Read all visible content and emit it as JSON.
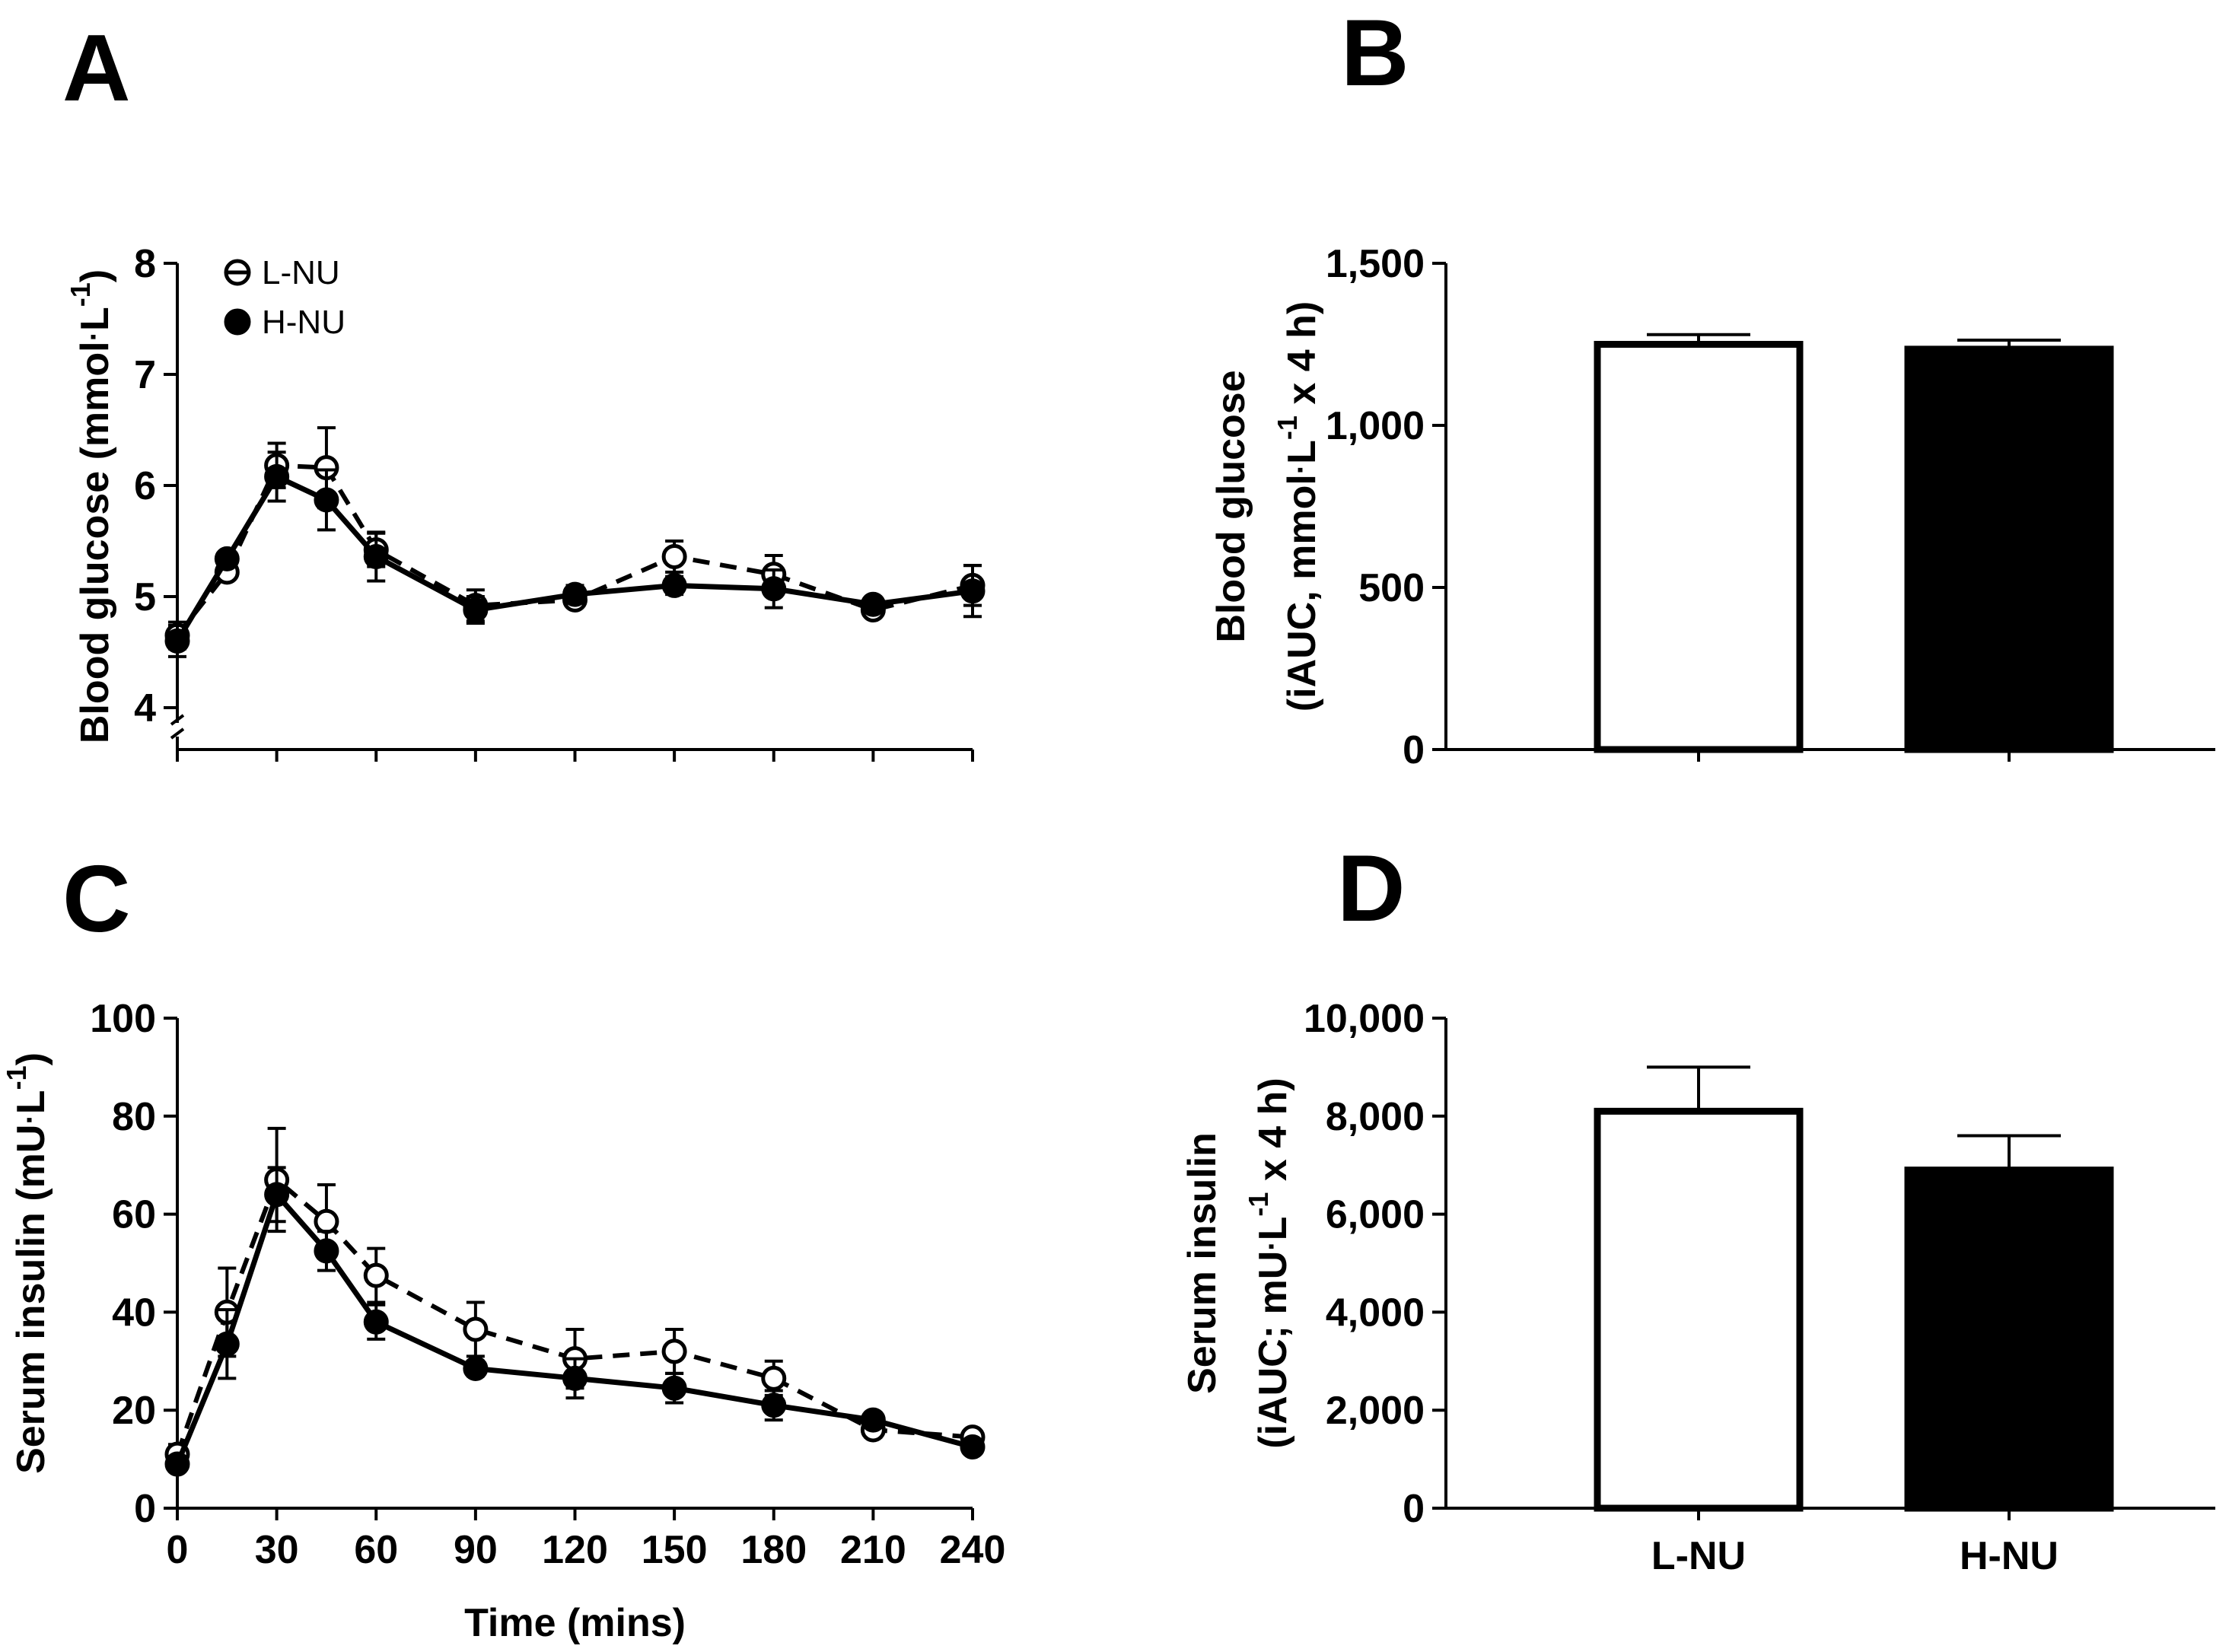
{
  "chart_data": [
    {
      "panel": "A",
      "type": "line",
      "x": [
        0,
        15,
        30,
        45,
        60,
        90,
        120,
        150,
        180,
        210,
        240
      ],
      "series": [
        {
          "name": "L-NU",
          "marker": "open-circle",
          "line": "dashed",
          "values": [
            4.65,
            5.22,
            6.18,
            6.16,
            5.42,
            4.92,
            4.97,
            5.36,
            5.2,
            4.88,
            5.1
          ],
          "errors": [
            0.12,
            0.06,
            0.2,
            0.36,
            0.15,
            0.14,
            0.05,
            0.14,
            0.17,
            0.05,
            0.18
          ]
        },
        {
          "name": "H-NU",
          "marker": "filled-circle",
          "line": "solid",
          "values": [
            4.6,
            5.34,
            6.08,
            5.87,
            5.36,
            4.88,
            5.02,
            5.1,
            5.07,
            4.93,
            5.05
          ],
          "errors": [
            0.14,
            0.04,
            0.22,
            0.27,
            0.22,
            0.12,
            0.08,
            0.08,
            0.17,
            0.05,
            0.23
          ]
        }
      ],
      "ylabel_main": "Blood glucose (mmol",
      "ylabel_unit": "L",
      "ylabel_exp": "-1",
      "ylabel_close": ")",
      "yticks": [
        "4",
        "5",
        "6",
        "7",
        "8"
      ],
      "ylim": [
        4,
        8
      ],
      "xlim": [
        0,
        240
      ],
      "axis_break": true,
      "legend": [
        "L-NU",
        "H-NU"
      ],
      "legend_position": "top-left"
    },
    {
      "panel": "B",
      "type": "bar",
      "categories": [
        "L-NU",
        "H-NU"
      ],
      "values": [
        1250,
        1235
      ],
      "errors": [
        30,
        28
      ],
      "fills": [
        "#ffffff",
        "#000000"
      ],
      "ylabel_line1": "Blood glucose",
      "ylabel_line2_a": "(iAUC, mmol",
      "ylabel_line2_b": "L",
      "ylabel_exp": "-1",
      "ylabel_line2_c": " x 4 h)",
      "yticks": [
        "0",
        "500",
        "1,000",
        "1,500"
      ],
      "ylim": [
        0,
        1500
      ]
    },
    {
      "panel": "C",
      "type": "line",
      "x": [
        0,
        15,
        30,
        45,
        60,
        90,
        120,
        150,
        180,
        210,
        240
      ],
      "series": [
        {
          "name": "L-NU",
          "marker": "open-circle",
          "line": "dashed",
          "values": [
            11,
            40,
            67,
            58.5,
            47.5,
            36.5,
            30.5,
            32,
            26.5,
            16,
            14.5
          ],
          "errors": [
            2,
            9,
            10.5,
            7.5,
            5.5,
            5.5,
            6,
            4.5,
            3.5,
            1.5,
            1.2
          ]
        },
        {
          "name": "H-NU",
          "marker": "filled-circle",
          "line": "solid",
          "values": [
            9,
            33.5,
            64,
            52.5,
            38,
            28.5,
            26.5,
            24.5,
            21,
            18,
            12.5
          ],
          "errors": [
            1.2,
            7,
            5.5,
            4,
            3.5,
            1.5,
            4,
            3,
            3,
            1.5,
            1.2
          ]
        }
      ],
      "ylabel_main": "Serum insulin (mU",
      "ylabel_unit": "L",
      "ylabel_exp": "-1",
      "ylabel_close": ")",
      "xticks": [
        "0",
        "30",
        "60",
        "90",
        "120",
        "150",
        "180",
        "210",
        "240"
      ],
      "xlabel": "Time (mins)",
      "yticks": [
        "0",
        "20",
        "40",
        "60",
        "80",
        "100"
      ],
      "ylim": [
        0,
        100
      ],
      "xlim": [
        0,
        240
      ]
    },
    {
      "panel": "D",
      "type": "bar",
      "categories": [
        "L-NU",
        "H-NU"
      ],
      "values": [
        8100,
        6900
      ],
      "errors": [
        900,
        700
      ],
      "fills": [
        "#ffffff",
        "#000000"
      ],
      "ylabel_line1": "Serum insulin",
      "ylabel_line2_a": "(iAUC; mU",
      "ylabel_line2_b": "L",
      "ylabel_exp": "-1",
      "ylabel_line2_c": " x 4 h)",
      "yticks": [
        "0",
        "2,000",
        "4,000",
        "6,000",
        "8,000",
        "10,000"
      ],
      "ylim": [
        0,
        10000
      ]
    }
  ],
  "panels": {
    "a": {
      "letter": "A"
    },
    "b": {
      "letter": "B"
    },
    "c": {
      "letter": "C"
    },
    "d": {
      "letter": "D"
    }
  },
  "legend": {
    "l_nu": "L-NU",
    "h_nu": "H-NU"
  }
}
